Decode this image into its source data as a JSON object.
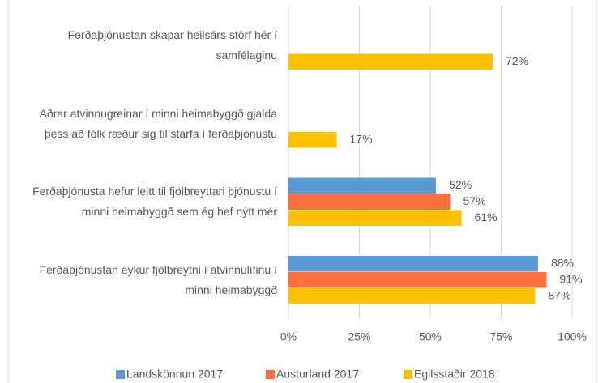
{
  "chart_data": {
    "type": "bar",
    "orientation": "horizontal",
    "categories": [
      "Ferðaþjónustan skapar heilsárs störf hér í samfélaginu",
      "Aðrar atvinnugreinar í minni heimabyggð gjalda þess að fólk ræður sig til starfa í ferðaþjónustu",
      "Ferðaþjónusta hefur leitt til fjölbreyttari þjónustu í minni heimabyggð sem ég hef nýtt mér",
      "Ferðaþjónustan eykur fjölbreytni í atvinnulífinu í minni heimabyggð"
    ],
    "series": [
      {
        "name": "Landskönnun 2017",
        "color": "#5b9bd5",
        "values": [
          null,
          null,
          52,
          88
        ],
        "value_labels": [
          null,
          null,
          "52%",
          "88%"
        ]
      },
      {
        "name": "Austurland 2017",
        "color": "#ff6f3c",
        "values": [
          null,
          null,
          57,
          91
        ],
        "value_labels": [
          null,
          null,
          "57%",
          "91%"
        ]
      },
      {
        "name": "Egilsstaðir 2018",
        "color": "#ffc000",
        "values": [
          72,
          17,
          61,
          87
        ],
        "value_labels": [
          "72%",
          "17%",
          "61%",
          "87%"
        ]
      }
    ],
    "xlim": [
      0,
      100
    ],
    "xticks": [
      {
        "value": 0,
        "label": "0%"
      },
      {
        "value": 25,
        "label": "25%"
      },
      {
        "value": 50,
        "label": "50%"
      },
      {
        "value": 75,
        "label": "75%"
      },
      {
        "value": 100,
        "label": "100%"
      }
    ],
    "grid": true,
    "legend": "bottom"
  }
}
